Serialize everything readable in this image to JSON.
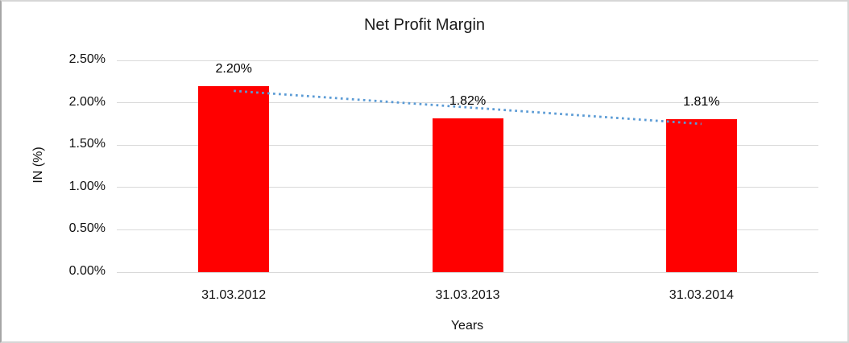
{
  "chart_data": {
    "type": "bar",
    "title": "Net Profit Margin",
    "xlabel": "Years",
    "ylabel": "IN (%)",
    "categories": [
      "31.03.2012",
      "31.03.2013",
      "31.03.2014"
    ],
    "values": [
      2.2,
      1.82,
      1.81
    ],
    "value_labels": [
      "2.20%",
      "1.82%",
      "1.81%"
    ],
    "ylim": [
      0,
      2.5
    ],
    "ytick_step": 0.5,
    "ytick_labels": [
      "0.00%",
      "0.50%",
      "1.00%",
      "1.50%",
      "2.00%",
      "2.50%"
    ],
    "grid": true,
    "legend": "none",
    "bar_color": "#ff0000",
    "gridline_color": "#d9d9d9",
    "text_color": "#111111",
    "trendline": {
      "type": "linear",
      "style": "dotted",
      "color": "#5b9bd5",
      "start_value": 2.14,
      "end_value": 1.75
    }
  }
}
